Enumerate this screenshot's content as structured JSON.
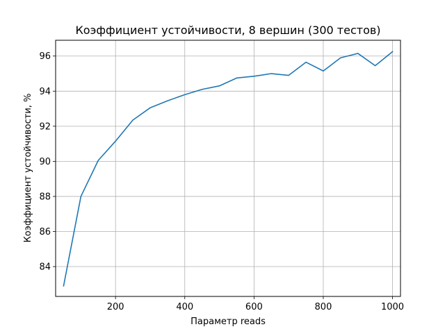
{
  "chart_data": {
    "type": "line",
    "title": "Коэффициент устойчивости, 8 вершин (300 тестов)",
    "xlabel": "Параметр reads",
    "ylabel": "Коэффициент устойчивости, %",
    "xlim": [
      27,
      1023
    ],
    "ylim": [
      82.3,
      96.9
    ],
    "xticks": [
      200,
      400,
      600,
      800,
      1000
    ],
    "yticks": [
      84,
      86,
      88,
      90,
      92,
      94,
      96
    ],
    "grid": true,
    "series": [
      {
        "color": "#1f77b4",
        "x": [
          50,
          100,
          150,
          200,
          250,
          300,
          350,
          400,
          450,
          500,
          550,
          600,
          650,
          700,
          750,
          800,
          850,
          900,
          950,
          1000
        ],
        "y": [
          82.9,
          88.0,
          90.05,
          91.15,
          92.35,
          93.05,
          93.45,
          93.8,
          94.1,
          94.3,
          94.75,
          94.85,
          95.0,
          94.9,
          95.65,
          95.15,
          95.9,
          96.15,
          95.45,
          96.25
        ]
      }
    ]
  }
}
